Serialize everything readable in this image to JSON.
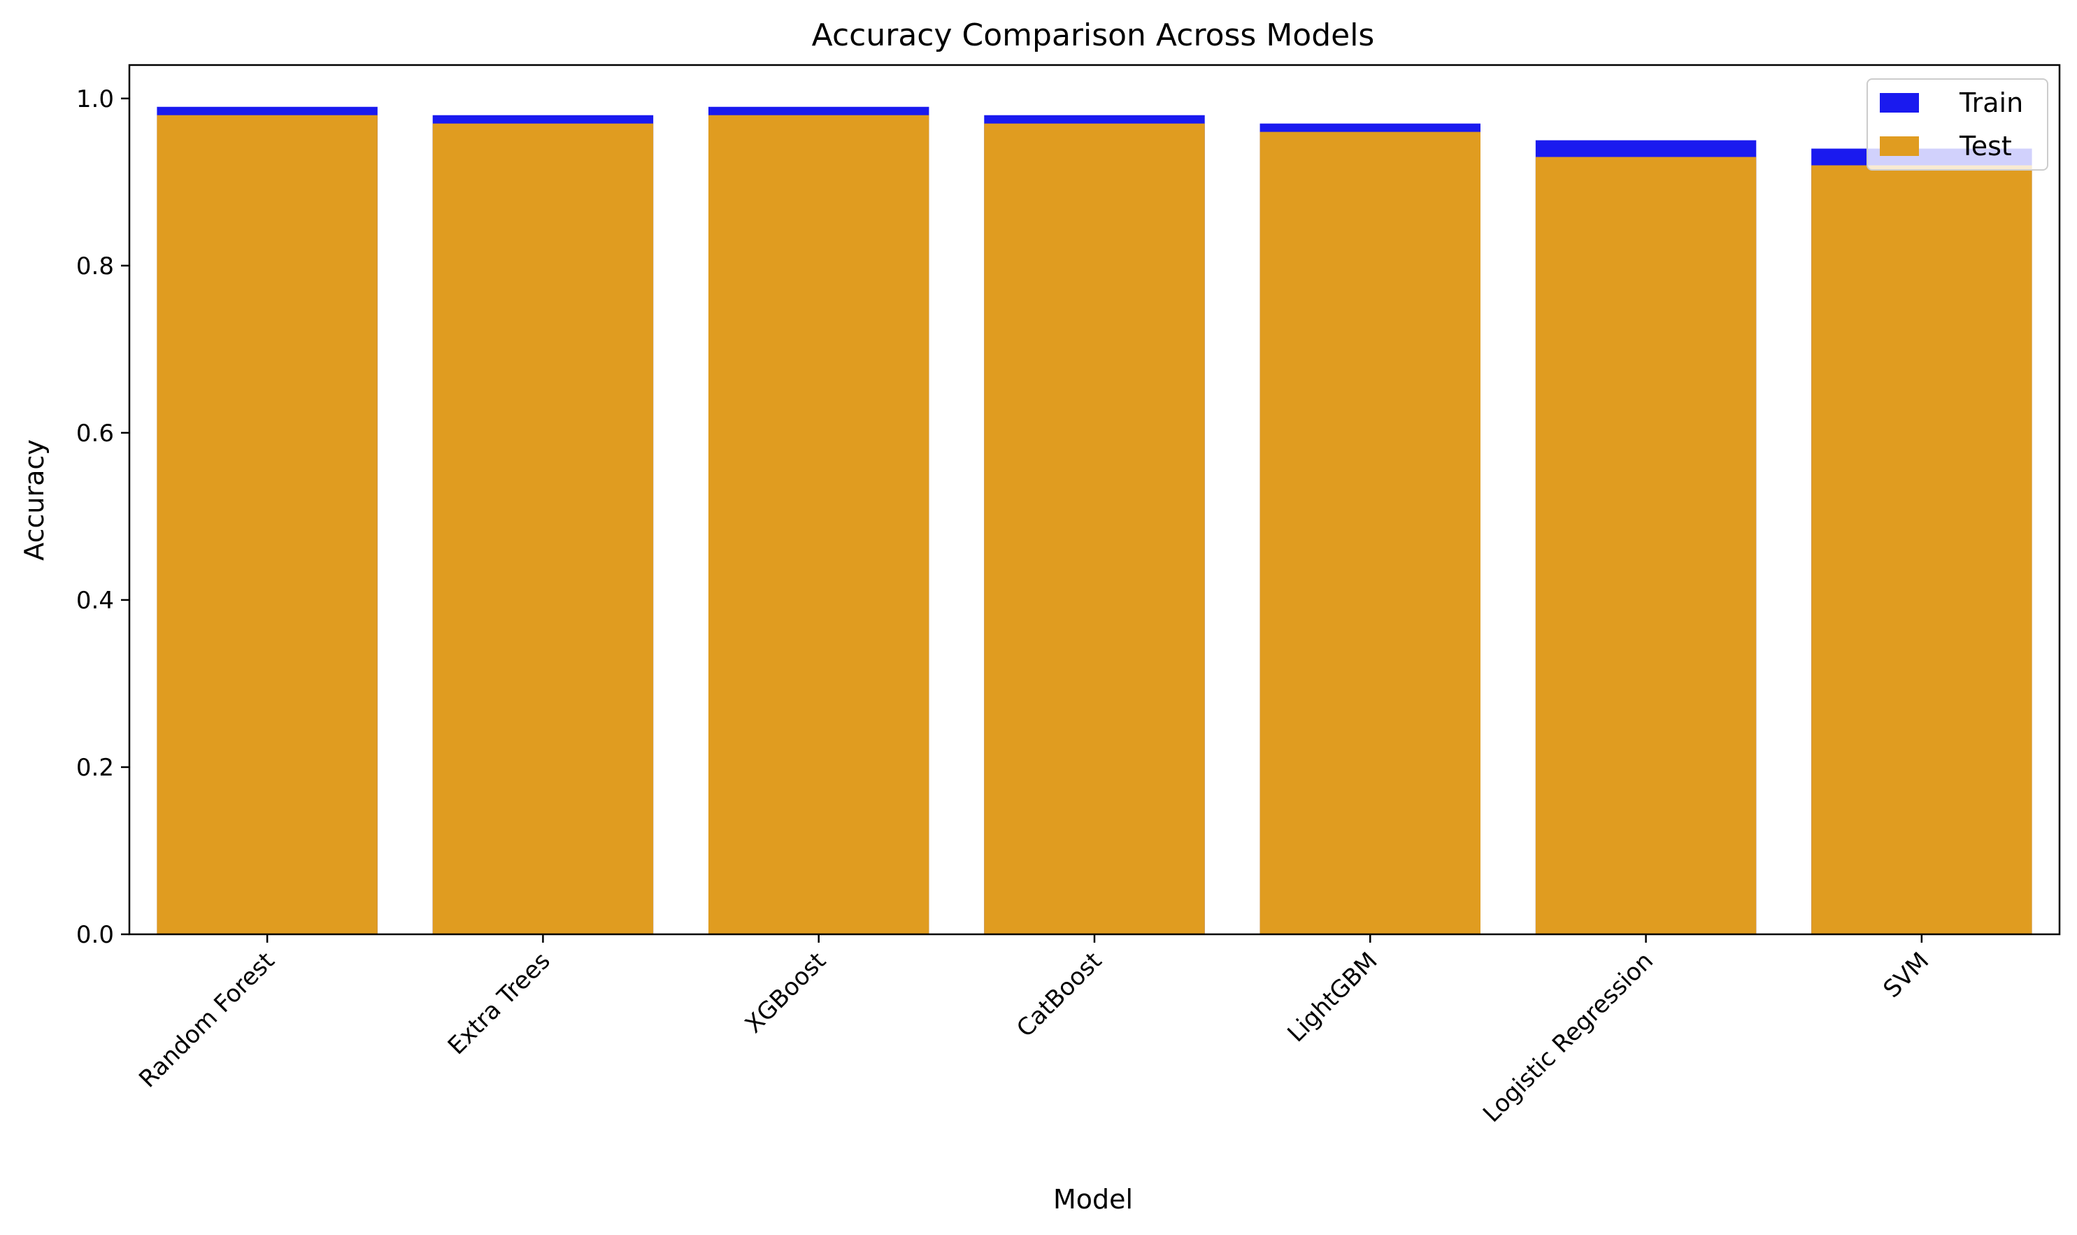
{
  "chart_data": {
    "type": "bar",
    "title": "Accuracy Comparison Across Models",
    "xlabel": "Model",
    "ylabel": "Accuracy",
    "categories": [
      "Random Forest",
      "Extra Trees",
      "XGBoost",
      "CatBoost",
      "LightGBM",
      "Logistic Regression",
      "SVM"
    ],
    "series": [
      {
        "name": "Train",
        "color": "#1a1aef",
        "values": [
          0.99,
          0.98,
          0.99,
          0.98,
          0.97,
          0.95,
          0.94
        ]
      },
      {
        "name": "Test",
        "color": "#e09c20",
        "values": [
          0.98,
          0.97,
          0.98,
          0.97,
          0.96,
          0.93,
          0.92
        ]
      }
    ],
    "ylim": [
      0,
      1.04
    ],
    "yticks": [
      0.0,
      0.2,
      0.4,
      0.6,
      0.8,
      1.0
    ],
    "ytick_labels": [
      "0.0",
      "0.2",
      "0.4",
      "0.6",
      "0.8",
      "1.0"
    ],
    "grid": false,
    "legend_position": "top-right",
    "overlay": true
  }
}
